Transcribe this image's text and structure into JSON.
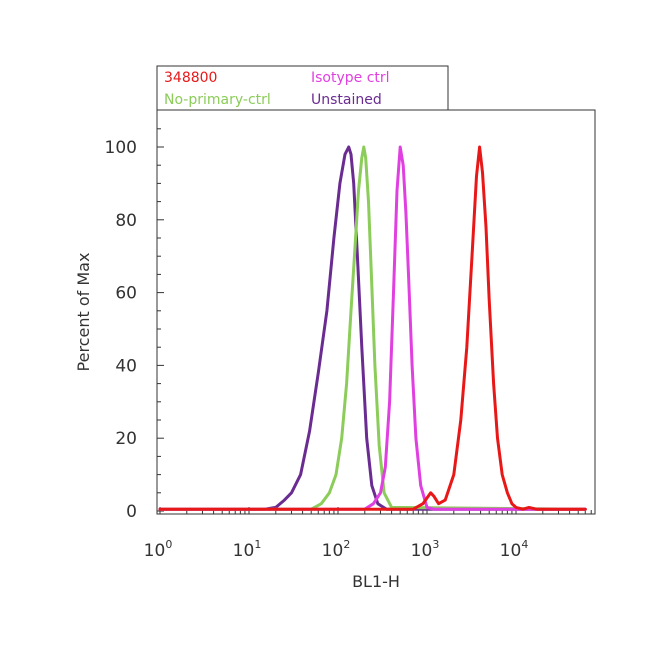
{
  "chart_data": {
    "type": "line",
    "xlabel": "BL1-H",
    "ylabel": "Percent of Max",
    "xscale": "log",
    "xlim": [
      1,
      60000
    ],
    "ylim": [
      0,
      110
    ],
    "grid": false,
    "legend_position": "top-left",
    "y_ticks": [
      "0",
      "20",
      "40",
      "60",
      "80",
      "100"
    ],
    "x_ticks": [
      {
        "base": "10",
        "exp": "0"
      },
      {
        "base": "10",
        "exp": "1"
      },
      {
        "base": "10",
        "exp": "2"
      },
      {
        "base": "10",
        "exp": "3"
      },
      {
        "base": "10",
        "exp": "4"
      }
    ],
    "series": [
      {
        "name": "Unstained",
        "color": "#6a2c91",
        "x": [
          1,
          15,
          20,
          25,
          30,
          38,
          48,
          60,
          75,
          90,
          105,
          120,
          132,
          140,
          150,
          165,
          185,
          210,
          240,
          280,
          350,
          60000
        ],
        "y": [
          0.5,
          0.5,
          1,
          3,
          5,
          10,
          22,
          38,
          55,
          75,
          90,
          98,
          100,
          98,
          90,
          70,
          45,
          20,
          7,
          2,
          0.5,
          0.5
        ]
      },
      {
        "name": "No-primary-ctrl",
        "color": "#8ccc5a",
        "x": [
          1,
          50,
          65,
          80,
          95,
          110,
          125,
          140,
          155,
          170,
          185,
          195,
          205,
          220,
          240,
          260,
          290,
          330,
          400,
          60000
        ],
        "y": [
          0.5,
          0.5,
          2,
          5,
          10,
          20,
          35,
          55,
          72,
          88,
          97,
          100,
          97,
          85,
          62,
          40,
          18,
          5,
          1,
          0.5
        ]
      },
      {
        "name": "Isotype ctrl",
        "color": "#e040e0",
        "x": [
          1,
          200,
          250,
          300,
          340,
          380,
          420,
          460,
          500,
          540,
          580,
          620,
          680,
          750,
          850,
          1000,
          1200,
          60000
        ],
        "y": [
          0.5,
          0.5,
          2,
          5,
          12,
          30,
          60,
          88,
          100,
          95,
          82,
          65,
          40,
          20,
          7,
          1,
          0.5,
          0.5
        ]
      },
      {
        "name": "348800",
        "color": "#e81818",
        "x": [
          1,
          700,
          900,
          1100,
          1200,
          1350,
          1600,
          2000,
          2400,
          2800,
          3200,
          3600,
          3900,
          4200,
          4600,
          5000,
          5600,
          6200,
          7000,
          8000,
          9000,
          10000,
          12000,
          14000,
          17000,
          60000
        ],
        "y": [
          0.5,
          0.5,
          2,
          5,
          4,
          2,
          3,
          10,
          25,
          45,
          70,
          92,
          100,
          93,
          78,
          58,
          35,
          20,
          10,
          5,
          2,
          1,
          0.5,
          1,
          0.5,
          0.5
        ]
      }
    ]
  },
  "legend": {
    "items": [
      {
        "label": "348800",
        "color": "#e81818"
      },
      {
        "label": "Isotype ctrl",
        "color": "#e040e0"
      },
      {
        "label": "No-primary-ctrl",
        "color": "#8ccc5a"
      },
      {
        "label": "Unstained",
        "color": "#6a2c91"
      }
    ]
  }
}
